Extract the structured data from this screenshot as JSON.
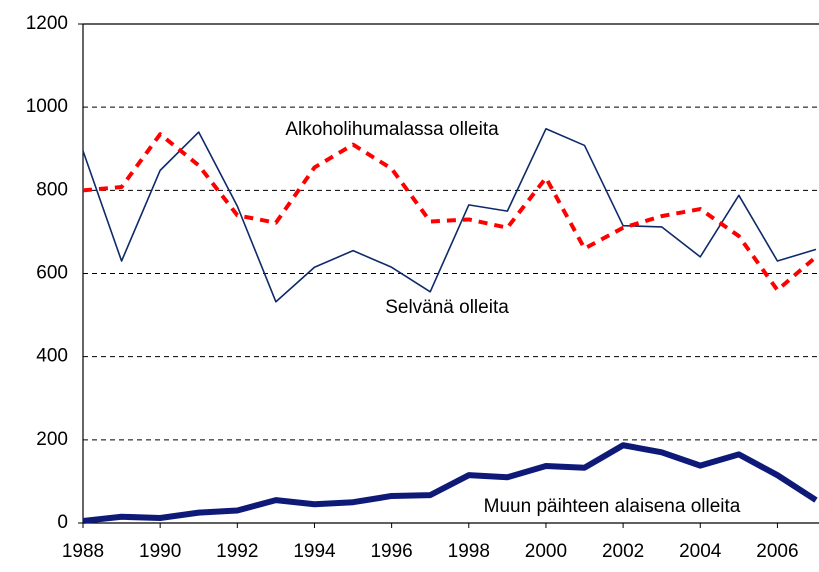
{
  "chart_data": {
    "type": "line",
    "x": [
      1988,
      1989,
      1990,
      1991,
      1992,
      1993,
      1994,
      1995,
      1996,
      1997,
      1998,
      1999,
      2000,
      2001,
      2002,
      2003,
      2004,
      2005,
      2006,
      2007
    ],
    "series": [
      {
        "name": "Selvänä olleita",
        "color": "#0f2a6b",
        "style": "solid",
        "values": [
          895,
          630,
          848,
          940,
          762,
          532,
          615,
          655,
          615,
          556,
          765,
          750,
          948,
          908,
          715,
          712,
          640,
          788,
          630,
          658
        ]
      },
      {
        "name": "Alkoholihumalassa olleita",
        "color": "#ff0000",
        "style": "dashed",
        "values": [
          800,
          808,
          935,
          860,
          740,
          722,
          855,
          910,
          852,
          725,
          730,
          710,
          830,
          660,
          710,
          738,
          755,
          690,
          560,
          640
        ]
      },
      {
        "name": "Muun päihteen alaisena olleita",
        "color": "#0f1a78",
        "style": "thick",
        "values": [
          5,
          15,
          12,
          25,
          30,
          55,
          45,
          50,
          65,
          67,
          115,
          110,
          137,
          133,
          187,
          170,
          138,
          165,
          115,
          55
        ]
      }
    ],
    "xlim": [
      1988,
      2007
    ],
    "xticks": [
      1988,
      1990,
      1992,
      1994,
      1996,
      1998,
      2000,
      2002,
      2004,
      2006
    ],
    "ylim": [
      0,
      1200
    ],
    "yticks": [
      0,
      200,
      400,
      600,
      800,
      1000,
      1200
    ],
    "grid": true
  }
}
